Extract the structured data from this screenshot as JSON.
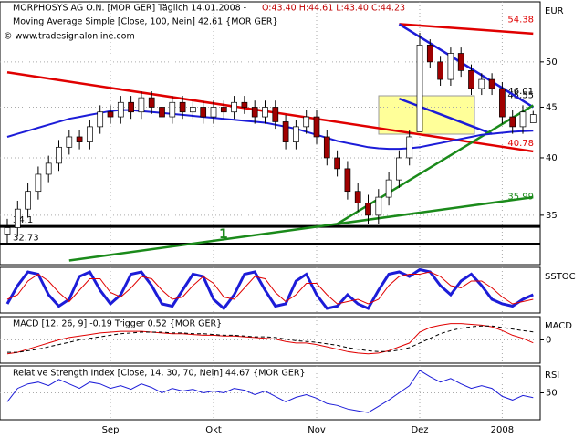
{
  "chart_data": [
    {
      "type": "candlestick",
      "title": "MORPHOSYS AG O.N. [MOR GER] Täglich 14.01.2008 -",
      "quote": "O:43.40 H:44.61 L:43.40 C:44.23",
      "subtitle": "Moving Average Simple [Close, 100, Nein] 42.61 {MOR GER}",
      "copyright": "© www.tradesignalonline.com",
      "y_label": "EUR",
      "annotation": "1",
      "log_scale": true,
      "grid": true,
      "ylim": [
        31.2,
        57.5
      ],
      "yticks": [
        35,
        40,
        45,
        50
      ],
      "categories": [
        null,
        null,
        null,
        null,
        null,
        null,
        null,
        null,
        null,
        null,
        "Sep",
        null,
        null,
        null,
        null,
        null,
        null,
        null,
        null,
        null,
        "Okt",
        null,
        null,
        null,
        null,
        null,
        null,
        null,
        null,
        null,
        "Nov",
        null,
        null,
        null,
        null,
        null,
        null,
        null,
        null,
        null,
        "Dez",
        null,
        null,
        null,
        null,
        null,
        null,
        null,
        "2008",
        null,
        null,
        null
      ],
      "open": [
        33.5,
        34,
        35.5,
        37,
        38.5,
        39.5,
        41,
        42,
        41.5,
        43,
        44.5,
        44,
        45.5,
        44.5,
        46,
        45,
        44,
        45.5,
        44.5,
        45,
        44,
        45,
        44.5,
        45.5,
        45,
        44,
        45,
        43.5,
        41.5,
        43,
        44,
        42,
        40,
        39,
        37,
        36,
        35,
        36.5,
        38,
        40,
        42.5,
        52,
        50,
        48,
        51,
        49,
        47,
        48,
        47,
        44,
        43,
        43.4
      ],
      "high": [
        34.7,
        36.2,
        37.7,
        39.2,
        40.2,
        41.7,
        42.7,
        42.7,
        43.7,
        45.2,
        45.2,
        46.2,
        46.2,
        46.7,
        46.7,
        45.7,
        46.2,
        46.2,
        45.7,
        45.7,
        45.7,
        45.7,
        46.2,
        46.2,
        45.7,
        45.7,
        45.7,
        44.2,
        43.7,
        44.7,
        44.7,
        42.7,
        40.7,
        39.7,
        37.7,
        36.7,
        37.2,
        38.7,
        40.7,
        42.7,
        53.5,
        52.7,
        50.7,
        51.7,
        51.7,
        49.7,
        48.7,
        48.7,
        47.7,
        44.7,
        45.2,
        44.61
      ],
      "low": [
        32.8,
        33.3,
        34.8,
        36.3,
        37.8,
        38.8,
        40.3,
        40.8,
        40.8,
        42.3,
        43.3,
        43.3,
        43.8,
        43.8,
        44.3,
        43.3,
        43.3,
        43.8,
        43.8,
        43.3,
        43.3,
        43.8,
        43.8,
        44.3,
        43.3,
        43.3,
        42.8,
        40.8,
        40.8,
        42.3,
        41.3,
        39.3,
        38.3,
        36.3,
        35.3,
        34.3,
        34.3,
        35.8,
        37.3,
        39.3,
        42.5,
        49.3,
        47.3,
        47.3,
        48.3,
        46.3,
        46.3,
        46.3,
        43.3,
        42.3,
        42.3,
        43.4
      ],
      "close": [
        34,
        35.5,
        37,
        38.5,
        39.5,
        41,
        42,
        41.5,
        43,
        44.5,
        44,
        45.5,
        44.5,
        46,
        45,
        44,
        45.5,
        44.5,
        45,
        44,
        45,
        44.5,
        45.5,
        45,
        44,
        45,
        43.5,
        41.5,
        43,
        44,
        42,
        40,
        39,
        37,
        36,
        35,
        36.5,
        38,
        40,
        42,
        52,
        50,
        48,
        51,
        49,
        47,
        48,
        47,
        44,
        43,
        44.5,
        44.23
      ],
      "up_color": "#ffffff",
      "down_color": "#a00000",
      "series": [
        {
          "color": "#1c1cd8",
          "values": [
            42.0,
            42.3,
            42.6,
            42.9,
            43.2,
            43.5,
            43.8,
            44.0,
            44.2,
            44.4,
            44.6,
            44.7,
            44.7,
            44.6,
            44.5,
            44.4,
            44.3,
            44.2,
            44.1,
            44.0,
            43.9,
            43.8,
            43.7,
            43.6,
            43.5,
            43.4,
            43.2,
            43.0,
            42.8,
            42.5,
            42.2,
            41.9,
            41.6,
            41.4,
            41.2,
            41.0,
            40.9,
            40.85,
            40.85,
            40.9,
            41.0,
            41.2,
            41.4,
            41.6,
            41.8,
            42.0,
            42.2,
            42.3,
            42.4,
            42.5,
            42.55,
            42.61
          ]
        }
      ],
      "trendlines": [
        {
          "color": "#e00000",
          "x": [
            0,
            51
          ],
          "values": [
            48.8,
            40.6
          ]
        },
        {
          "color": "#e00000",
          "x": [
            38,
            51
          ],
          "values": [
            54.6,
            53.4
          ]
        },
        {
          "color": "#1c1cd8",
          "x": [
            38,
            51
          ],
          "values": [
            54.6,
            45.0
          ]
        },
        {
          "color": "#1c1cd8",
          "x": [
            38,
            47
          ],
          "values": [
            45.9,
            42.3
          ]
        },
        {
          "color": "#1a8a1a",
          "x": [
            6,
            32
          ],
          "values": [
            31.5,
            34.3
          ]
        },
        {
          "color": "#1a8a1a",
          "x": [
            32,
            51
          ],
          "values": [
            34.3,
            36.5
          ]
        },
        {
          "color": "#1a8a1a",
          "x": [
            32,
            51
          ],
          "values": [
            34.3,
            45.2
          ]
        }
      ],
      "levels": [
        {
          "value": 54.38,
          "color": "#e00000",
          "side": "right",
          "line": false
        },
        {
          "value": 46.01,
          "color": "#000000",
          "side": "right",
          "line": false
        },
        {
          "value": 45.55,
          "color": "#000000",
          "side": "right",
          "line": false
        },
        {
          "value": 40.78,
          "color": "#e00000",
          "side": "right",
          "line": false
        },
        {
          "value": 35.99,
          "color": "#1a8a1a",
          "side": "right",
          "line": false
        },
        {
          "value": 34.1,
          "color": "#000000",
          "side": "left",
          "line": true
        },
        {
          "value": 32.73,
          "color": "#000000",
          "side": "left",
          "line": true
        }
      ]
    },
    {
      "type": "line",
      "y_label": "SSTOC",
      "ylim": [
        0,
        100
      ],
      "series": [
        {
          "color": "#1c1cd8",
          "width": 3,
          "values": [
            20,
            60,
            90,
            85,
            40,
            15,
            30,
            80,
            90,
            50,
            20,
            40,
            85,
            90,
            60,
            20,
            15,
            50,
            85,
            80,
            30,
            10,
            40,
            85,
            90,
            50,
            15,
            20,
            70,
            85,
            40,
            10,
            15,
            40,
            20,
            10,
            50,
            85,
            90,
            80,
            95,
            90,
            60,
            40,
            70,
            85,
            60,
            30,
            20,
            15,
            30,
            40
          ]
        },
        {
          "color": "#e00000",
          "width": 1,
          "values": [
            30,
            40,
            70,
            85,
            70,
            45,
            25,
            50,
            75,
            75,
            45,
            35,
            55,
            80,
            75,
            50,
            30,
            35,
            60,
            80,
            65,
            35,
            30,
            55,
            80,
            75,
            45,
            25,
            40,
            65,
            65,
            40,
            20,
            25,
            30,
            20,
            30,
            60,
            80,
            85,
            85,
            90,
            80,
            60,
            55,
            70,
            70,
            55,
            35,
            20,
            25,
            30
          ]
        }
      ]
    },
    {
      "type": "line",
      "title": "MACD [12, 26, 9] -0.19 Trigger 0.52 {MOR GER}",
      "y_label": "MACD",
      "ylim": [
        -1.5,
        1.5
      ],
      "yticks": [
        0
      ],
      "series": [
        {
          "color": "#e00000",
          "width": 1,
          "values": [
            -0.9,
            -0.8,
            -0.6,
            -0.4,
            -0.2,
            0,
            0.15,
            0.25,
            0.35,
            0.45,
            0.5,
            0.55,
            0.55,
            0.55,
            0.5,
            0.45,
            0.4,
            0.4,
            0.35,
            0.3,
            0.3,
            0.25,
            0.25,
            0.2,
            0.15,
            0.1,
            0.05,
            -0.1,
            -0.2,
            -0.2,
            -0.3,
            -0.45,
            -0.6,
            -0.75,
            -0.85,
            -0.9,
            -0.85,
            -0.7,
            -0.45,
            -0.2,
            0.5,
            0.8,
            0.95,
            1.05,
            1.05,
            1.0,
            0.95,
            0.85,
            0.6,
            0.3,
            0.1,
            -0.19
          ]
        },
        {
          "color": "#000000",
          "width": 1,
          "dashed": true,
          "values": [
            -0.8,
            -0.8,
            -0.7,
            -0.6,
            -0.45,
            -0.3,
            -0.15,
            0,
            0.1,
            0.2,
            0.3,
            0.4,
            0.45,
            0.5,
            0.5,
            0.5,
            0.45,
            0.45,
            0.4,
            0.4,
            0.35,
            0.3,
            0.3,
            0.25,
            0.2,
            0.2,
            0.15,
            0.05,
            -0.05,
            -0.1,
            -0.15,
            -0.25,
            -0.35,
            -0.5,
            -0.6,
            -0.7,
            -0.75,
            -0.75,
            -0.65,
            -0.5,
            -0.2,
            0.1,
            0.4,
            0.6,
            0.75,
            0.85,
            0.9,
            0.9,
            0.8,
            0.7,
            0.6,
            0.52
          ]
        }
      ]
    },
    {
      "type": "line",
      "title": "Relative Strength Index [Close, 14, 30, 70, Nein] 44.67 {MOR GER}",
      "y_label": "RSI",
      "ylim": [
        20,
        80
      ],
      "yticks": [
        50
      ],
      "series": [
        {
          "color": "#1c1cd8",
          "width": 1,
          "values": [
            40,
            55,
            60,
            62,
            58,
            65,
            60,
            55,
            62,
            60,
            55,
            58,
            54,
            60,
            56,
            50,
            55,
            52,
            54,
            50,
            52,
            50,
            55,
            53,
            48,
            52,
            46,
            40,
            45,
            48,
            44,
            38,
            36,
            32,
            30,
            28,
            35,
            42,
            50,
            58,
            75,
            68,
            62,
            66,
            60,
            55,
            58,
            55,
            46,
            42,
            47,
            44.67
          ]
        }
      ]
    }
  ]
}
